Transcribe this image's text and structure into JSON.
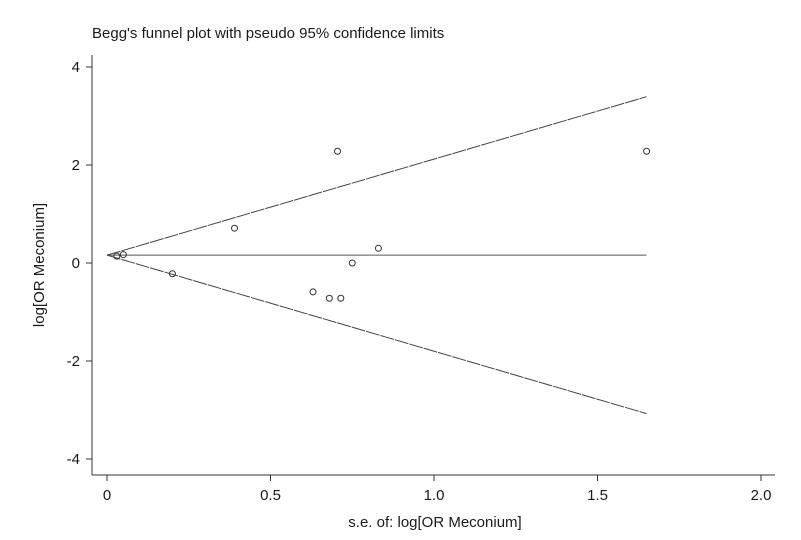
{
  "chart_data": {
    "type": "scatter",
    "title": "Begg's funnel plot with pseudo 95% confidence limits",
    "xlabel": "s.e. of: log[OR Meconium]",
    "ylabel": "log[OR Meconium]",
    "xlim": [
      0,
      2.05
    ],
    "ylim": [
      -4.3,
      4.3
    ],
    "xticks": [
      "0",
      "0.5",
      "1.0",
      "1.5",
      "2.0"
    ],
    "yticks": [
      "4",
      "2",
      "0",
      "-2",
      "-4"
    ],
    "grid": false,
    "pooled_estimate": 0.16,
    "ci_line_extent": 1.65,
    "points": [
      {
        "x": 0.03,
        "y": 0.14
      },
      {
        "x": 0.05,
        "y": 0.17
      },
      {
        "x": 0.2,
        "y": -0.22
      },
      {
        "x": 0.39,
        "y": 0.71
      },
      {
        "x": 0.63,
        "y": -0.59
      },
      {
        "x": 0.68,
        "y": -0.72
      },
      {
        "x": 0.705,
        "y": 2.28
      },
      {
        "x": 0.715,
        "y": -0.72
      },
      {
        "x": 0.75,
        "y": 0.0
      },
      {
        "x": 0.83,
        "y": 0.3
      },
      {
        "x": 1.65,
        "y": 2.28
      }
    ]
  }
}
